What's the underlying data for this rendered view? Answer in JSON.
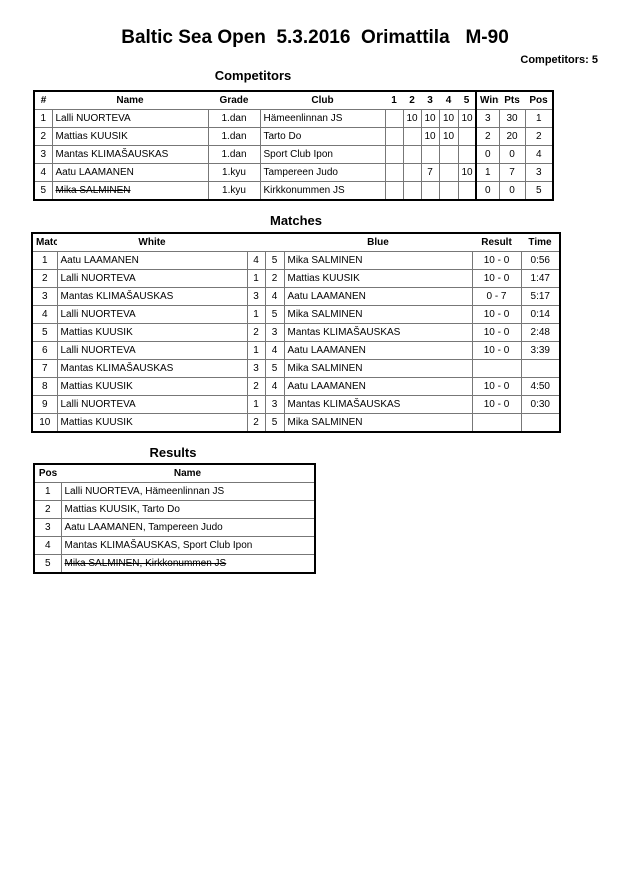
{
  "title": "Baltic Sea Open  5.3.2016  Orimattila   M-90",
  "competitors_count": "Competitors: 5",
  "competitors": {
    "heading": "Competitors",
    "headers": [
      "#",
      "Name",
      "Grade",
      "Club",
      "1",
      "2",
      "3",
      "4",
      "5",
      "Wins",
      "Pts",
      "Pos"
    ],
    "rows": [
      {
        "no": "1",
        "name": "Lalli NUORTEVA",
        "grade": "1.dan",
        "club": "Hämeenlinnan JS",
        "s": [
          "",
          "10",
          "10",
          "10",
          "10"
        ],
        "wins": "3",
        "pts": "30",
        "pos": "1",
        "withdrawn": false
      },
      {
        "no": "2",
        "name": "Mattias KUUSIK",
        "grade": "1.dan",
        "club": "Tarto Do",
        "s": [
          "",
          "",
          "10",
          "10",
          ""
        ],
        "wins": "2",
        "pts": "20",
        "pos": "2",
        "withdrawn": false
      },
      {
        "no": "3",
        "name": "Mantas KLIMAŠAUSKAS",
        "grade": "1.dan",
        "club": "Sport Club Ipon",
        "s": [
          "",
          "",
          "",
          "",
          ""
        ],
        "wins": "0",
        "pts": "0",
        "pos": "4",
        "withdrawn": false
      },
      {
        "no": "4",
        "name": "Aatu LAAMANEN",
        "grade": "1.kyu",
        "club": "Tampereen Judo",
        "s": [
          "",
          "",
          "7",
          "",
          "10"
        ],
        "wins": "1",
        "pts": "7",
        "pos": "3",
        "withdrawn": false
      },
      {
        "no": "5",
        "name": "Mika SALMINEN",
        "grade": "1.kyu",
        "club": "Kirkkonummen JS",
        "s": [
          "",
          "",
          "",
          "",
          ""
        ],
        "wins": "0",
        "pts": "0",
        "pos": "5",
        "withdrawn": true
      }
    ]
  },
  "matches": {
    "heading": "Matches",
    "headers": [
      "Match",
      "White",
      "Blue",
      "Result",
      "Time"
    ],
    "rows": [
      {
        "no": "1",
        "white": "Aatu LAAMANEN",
        "wn": "4",
        "bn": "5",
        "blue": "Mika SALMINEN",
        "result": "10 - 0",
        "time": "0:56"
      },
      {
        "no": "2",
        "white": "Lalli NUORTEVA",
        "wn": "1",
        "bn": "2",
        "blue": "Mattias KUUSIK",
        "result": "10 - 0",
        "time": "1:47"
      },
      {
        "no": "3",
        "white": "Mantas KLIMAŠAUSKAS",
        "wn": "3",
        "bn": "4",
        "blue": "Aatu LAAMANEN",
        "result": "0 - 7",
        "time": "5:17"
      },
      {
        "no": "4",
        "white": "Lalli NUORTEVA",
        "wn": "1",
        "bn": "5",
        "blue": "Mika SALMINEN",
        "result": "10 - 0",
        "time": "0:14"
      },
      {
        "no": "5",
        "white": "Mattias KUUSIK",
        "wn": "2",
        "bn": "3",
        "blue": "Mantas KLIMAŠAUSKAS",
        "result": "10 - 0",
        "time": "2:48"
      },
      {
        "no": "6",
        "white": "Lalli NUORTEVA",
        "wn": "1",
        "bn": "4",
        "blue": "Aatu LAAMANEN",
        "result": "10 - 0",
        "time": "3:39"
      },
      {
        "no": "7",
        "white": "Mantas KLIMAŠAUSKAS",
        "wn": "3",
        "bn": "5",
        "blue": "Mika SALMINEN",
        "result": "",
        "time": ""
      },
      {
        "no": "8",
        "white": "Mattias KUUSIK",
        "wn": "2",
        "bn": "4",
        "blue": "Aatu LAAMANEN",
        "result": "10 - 0",
        "time": "4:50"
      },
      {
        "no": "9",
        "white": "Lalli NUORTEVA",
        "wn": "1",
        "bn": "3",
        "blue": "Mantas KLIMAŠAUSKAS",
        "result": "10 - 0",
        "time": "0:30"
      },
      {
        "no": "10",
        "white": "Mattias KUUSIK",
        "wn": "2",
        "bn": "5",
        "blue": "Mika SALMINEN",
        "result": "",
        "time": ""
      }
    ]
  },
  "results": {
    "heading": "Results",
    "headers": [
      "Pos",
      "Name"
    ],
    "rows": [
      {
        "pos": "1",
        "name": "Lalli NUORTEVA, Hämeenlinnan JS",
        "withdrawn": false
      },
      {
        "pos": "2",
        "name": "Mattias KUUSIK, Tarto Do",
        "withdrawn": false
      },
      {
        "pos": "3",
        "name": "Aatu LAAMANEN, Tampereen Judo",
        "withdrawn": false
      },
      {
        "pos": "4",
        "name": "Mantas KLIMAŠAUSKAS, Sport Club Ipon",
        "withdrawn": false
      },
      {
        "pos": "5",
        "name": "Mika SALMINEN, Kirkkonummen JS",
        "withdrawn": true
      }
    ]
  }
}
